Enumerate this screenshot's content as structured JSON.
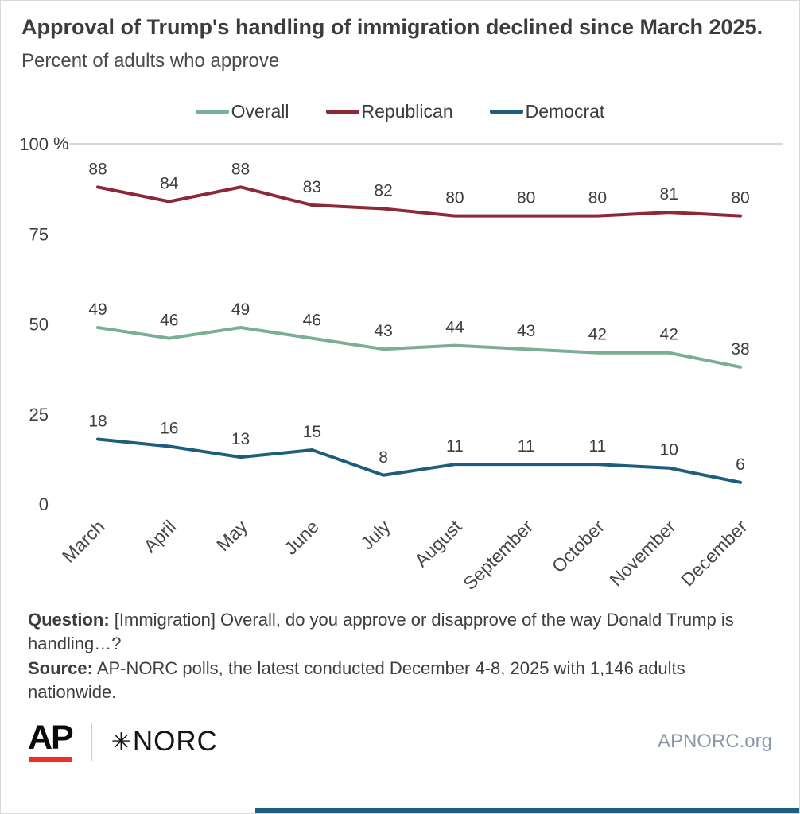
{
  "title": "Approval of Trump's handling of immigration declined since March 2025.",
  "subtitle": "Percent of adults who approve",
  "chart_data": {
    "type": "line",
    "categories": [
      "March",
      "April",
      "May",
      "June",
      "July",
      "August",
      "September",
      "October",
      "November",
      "December"
    ],
    "series": [
      {
        "name": "Overall",
        "color": "#7cae93",
        "values": [
          49,
          46,
          49,
          46,
          43,
          44,
          43,
          42,
          42,
          38
        ]
      },
      {
        "name": "Republican",
        "color": "#8e2836",
        "values": [
          88,
          84,
          88,
          83,
          82,
          80,
          80,
          80,
          81,
          80
        ]
      },
      {
        "name": "Democrat",
        "color": "#1e5e7d",
        "values": [
          18,
          16,
          13,
          15,
          8,
          11,
          11,
          11,
          10,
          6
        ]
      }
    ],
    "title": "Approval of Trump's handling of immigration declined since March 2025.",
    "subtitle": "Percent of adults who approve",
    "xlabel": "",
    "ylabel": "%",
    "ylim": [
      0,
      100
    ],
    "yticks": [
      0,
      25,
      50,
      75,
      100
    ],
    "legend_position": "top",
    "grid": "top-line-only",
    "point_labels": true
  },
  "footer": {
    "question_label": "Question:",
    "question_text": "[Immigration] Overall, do you approve or disapprove of the way Donald Trump is handling…?",
    "source_label": "Source:",
    "source_text": "AP-NORC polls, the latest conducted December 4-8, 2025 with 1,146 adults nationwide."
  },
  "branding": {
    "ap_logo_text": "AP",
    "norc_star": "✳",
    "norc_logo_text": "NORC",
    "website": "APNORC.org",
    "ap_red": "#ee3124",
    "accent_teal": "#1e5e7d"
  }
}
